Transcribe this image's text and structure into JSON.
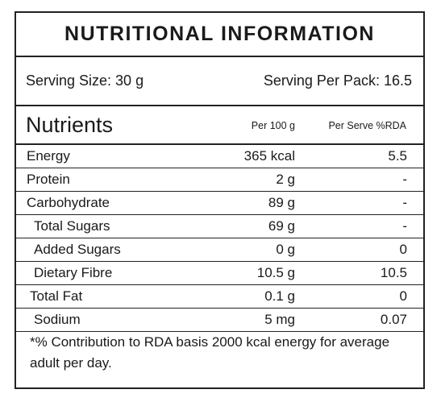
{
  "title": "NUTRITIONAL INFORMATION",
  "serving": {
    "size": "Serving Size: 30 g",
    "per_pack": "Serving Per Pack: 16.5"
  },
  "table": {
    "heading": "Nutrients",
    "col1": "Per 100 g",
    "col2": "Per Serve %RDA",
    "rows": [
      {
        "label": "Energy",
        "per100": "365 kcal",
        "rda": "5.5"
      },
      {
        "label": "Protein",
        "per100": "2 g",
        "rda": "-"
      },
      {
        "label": "Carbohydrate",
        "per100": "89 g",
        "rda": "-"
      },
      {
        "label": "Total Sugars",
        "per100": "69 g",
        "rda": "-"
      },
      {
        "label": "Added Sugars",
        "per100": "0 g",
        "rda": "0"
      },
      {
        "label": "Dietary Fibre",
        "per100": "10.5 g",
        "rda": "10.5"
      },
      {
        "label": "Total Fat",
        "per100": "0.1 g",
        "rda": "0"
      },
      {
        "label": "Sodium",
        "per100": "5 mg",
        "rda": "0.07"
      }
    ]
  },
  "footnote": "*% Contribution to RDA basis 2000 kcal energy for average adult per day."
}
